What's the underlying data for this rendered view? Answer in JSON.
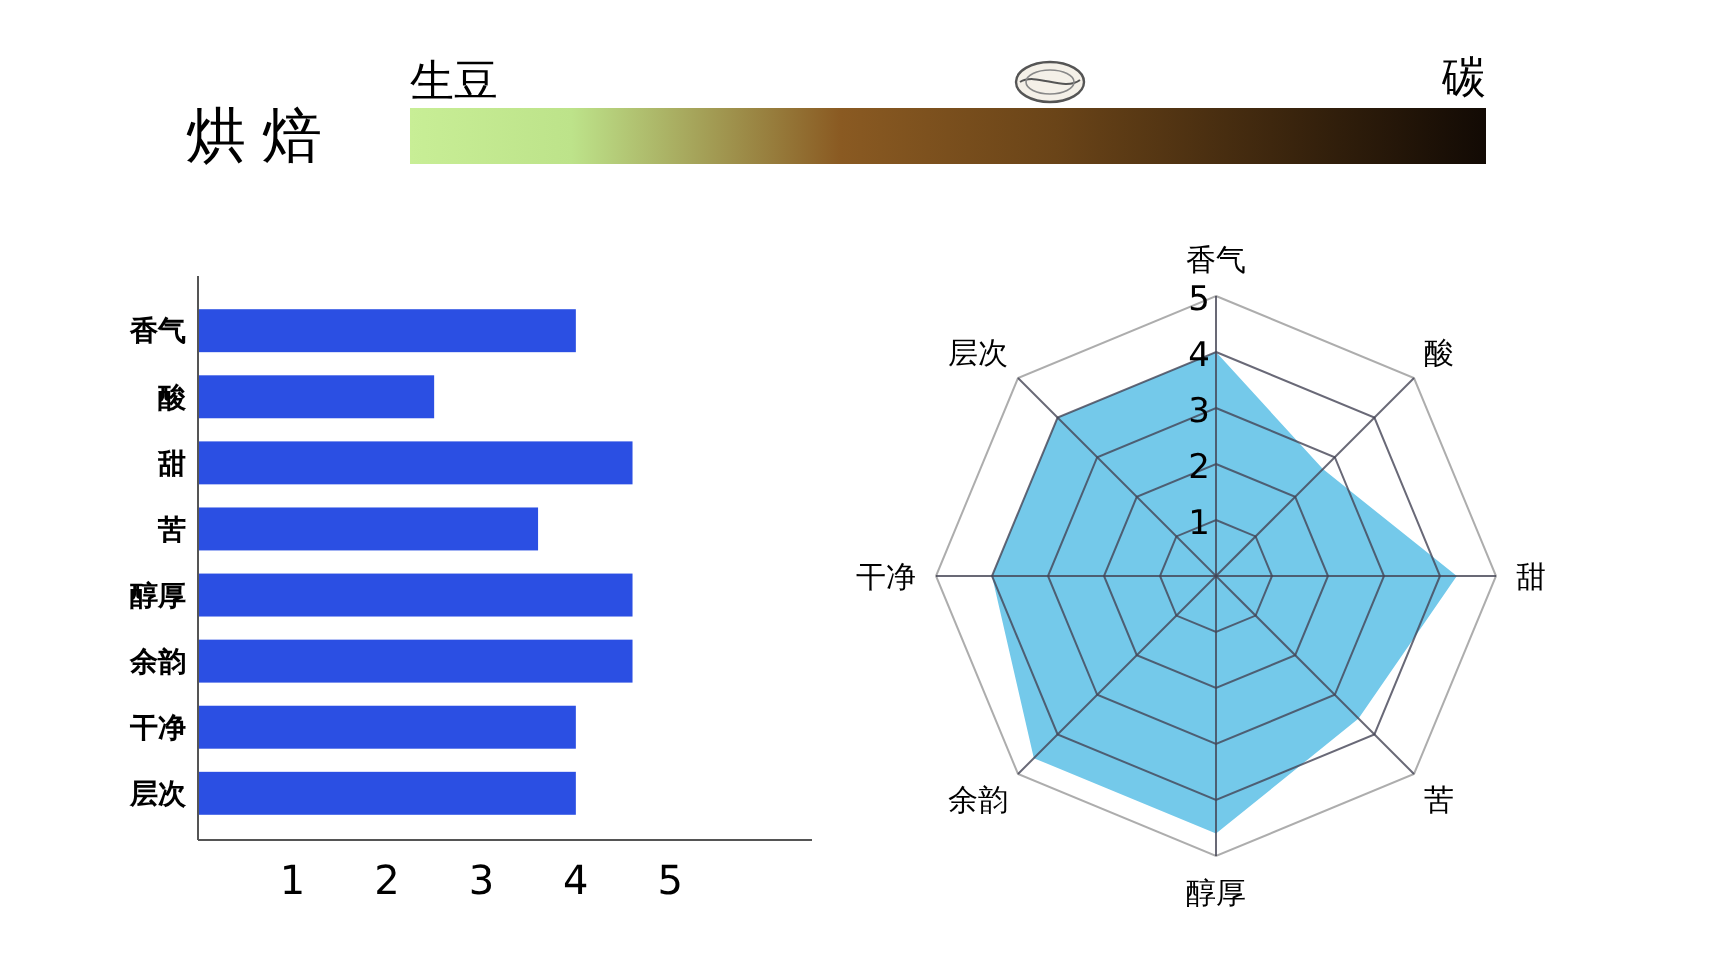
{
  "chart_data": [
    {
      "type": "other",
      "title": "烘焙",
      "annotations": [
        "生豆",
        "碳"
      ]
    },
    {
      "type": "bar",
      "orientation": "horizontal",
      "categories": [
        "香气",
        "酸",
        "甜",
        "苦",
        "醇厚",
        "余韵",
        "干净",
        "层次"
      ],
      "values": [
        4,
        2.5,
        4.6,
        3.6,
        4.6,
        4.6,
        4,
        4
      ],
      "color": "#2b4fe3",
      "xlim": [
        0,
        6.5
      ],
      "xticks": [
        1,
        2,
        3,
        4,
        5
      ],
      "grid": false
    },
    {
      "type": "radar",
      "categories": [
        "香气",
        "酸",
        "甜",
        "苦",
        "醇厚",
        "余韵",
        "干净",
        "层次"
      ],
      "series": [
        {
          "color": "#74c9ea",
          "values": [
            4,
            2.7,
            4.3,
            3.6,
            4.6,
            4.6,
            4,
            4
          ]
        }
      ],
      "ylim": [
        0,
        5
      ],
      "yticks": [
        1,
        2,
        3,
        4,
        5
      ],
      "grid": true
    }
  ]
}
